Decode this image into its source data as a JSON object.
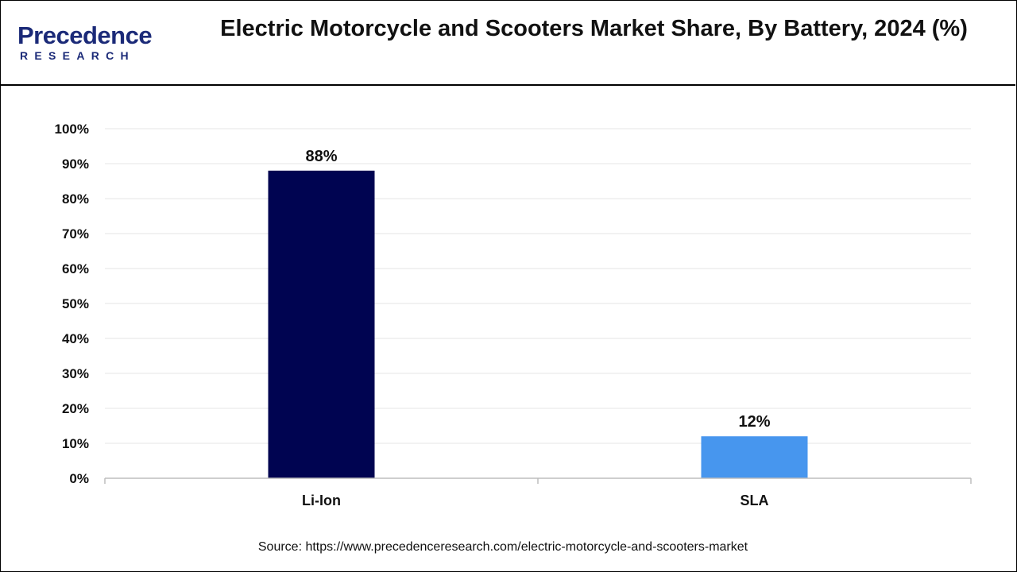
{
  "brand": {
    "name": "Precedence",
    "tagline": "RESEARCH",
    "color": "#1b2a78"
  },
  "header": {
    "title": "Electric Motorcycle and Scooters Market Share, By Battery, 2024 (%)"
  },
  "chart_data": {
    "type": "bar",
    "title": "Electric Motorcycle and Scooters Market Share, By Battery, 2024 (%)",
    "xlabel": "",
    "ylabel": "",
    "categories": [
      "Li-Ion",
      "SLA"
    ],
    "values": [
      88,
      12
    ],
    "value_labels": [
      "88%",
      "12%"
    ],
    "colors": [
      "#000451",
      "#4796ee"
    ],
    "ylim": [
      0,
      100
    ],
    "yticks": [
      0,
      10,
      20,
      30,
      40,
      50,
      60,
      70,
      80,
      90,
      100
    ],
    "ytick_labels": [
      "0%",
      "10%",
      "20%",
      "30%",
      "40%",
      "50%",
      "60%",
      "70%",
      "80%",
      "90%",
      "100%"
    ],
    "grid": true,
    "legend": "none"
  },
  "footer": {
    "source": "Source: https://www.precedenceresearch.com/electric-motorcycle-and-scooters-market"
  }
}
